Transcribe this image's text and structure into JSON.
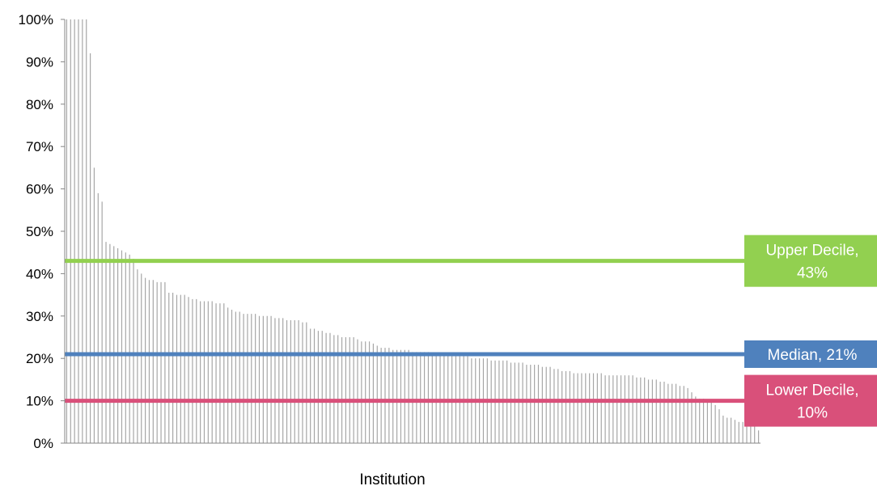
{
  "chart_data": {
    "type": "bar",
    "title": "",
    "xlabel": "Institution",
    "ylabel": "",
    "ylim": [
      0,
      100
    ],
    "yticks": [
      "0%",
      "10%",
      "20%",
      "30%",
      "40%",
      "50%",
      "60%",
      "70%",
      "80%",
      "90%",
      "100%"
    ],
    "grid": false,
    "bar_color": "#a6a6a6",
    "values": [
      100,
      100,
      100,
      100,
      100,
      100,
      92,
      65,
      59,
      57,
      47.5,
      47,
      46.5,
      46,
      45.5,
      45,
      44.5,
      43.5,
      41,
      40,
      39,
      38.5,
      38.5,
      38,
      38,
      38,
      35.5,
      35.5,
      35,
      35,
      35,
      34.5,
      34,
      34,
      33.5,
      33.5,
      33.5,
      33.5,
      33,
      33,
      33,
      32,
      31.5,
      31,
      31,
      30.5,
      30.5,
      30.5,
      30.5,
      30,
      30,
      30,
      30,
      29.5,
      29.5,
      29.5,
      29,
      29,
      29,
      29,
      28.5,
      28.5,
      27,
      27,
      26.5,
      26.5,
      26,
      26,
      25.5,
      25.5,
      25,
      25,
      25,
      25,
      24.5,
      24,
      24,
      24,
      23.5,
      23,
      22.5,
      22.5,
      22.5,
      22,
      22,
      22,
      22,
      22,
      21.5,
      21.5,
      21.5,
      21.5,
      21.5,
      21,
      21,
      21,
      21,
      21,
      20.5,
      20.5,
      20.5,
      20.5,
      20.5,
      20,
      20,
      20,
      20,
      20,
      19.5,
      19.5,
      19.5,
      19.5,
      19.5,
      19,
      19,
      19,
      19,
      18.5,
      18.5,
      18.5,
      18.5,
      18,
      18,
      18,
      17.5,
      17.5,
      17,
      17,
      17,
      16.5,
      16.5,
      16.5,
      16.5,
      16.5,
      16.5,
      16.5,
      16.5,
      16,
      16,
      16,
      16,
      16,
      16,
      16,
      16,
      15.5,
      15.5,
      15.5,
      15,
      15,
      15,
      14.5,
      14.5,
      14,
      14,
      14,
      13.5,
      13.5,
      13,
      12,
      11,
      10.5,
      10.5,
      10,
      10,
      9,
      8,
      6.5,
      6,
      6,
      5.5,
      5,
      5,
      5,
      4.5,
      4,
      3
    ],
    "reference_lines": [
      {
        "name": "Upper Decile",
        "value": 43,
        "color": "#92d050",
        "label_line1": "Upper Decile,",
        "label_line2": "43%"
      },
      {
        "name": "Median",
        "value": 21,
        "color": "#4f81bd",
        "label_line1": "Median, 21%",
        "label_line2": ""
      },
      {
        "name": "Lower Decile",
        "value": 10,
        "color": "#d9507a",
        "label_line1": "Lower Decile,",
        "label_line2": "10%"
      }
    ]
  }
}
